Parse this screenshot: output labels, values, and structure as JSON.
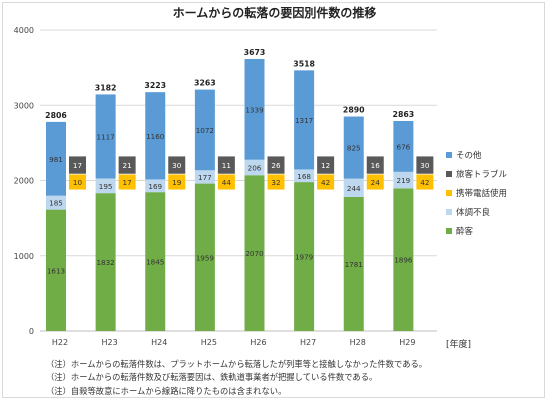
{
  "chart_data": {
    "type": "bar",
    "title": "ホームからの転落の要因別件数の推移",
    "categories": [
      "H22",
      "H23",
      "H24",
      "H25",
      "H26",
      "H27",
      "H28",
      "H29"
    ],
    "xlabel": "[年度]",
    "ylabel": "",
    "ylim": [
      0,
      4000
    ],
    "yticks": [
      "0",
      "1000",
      "2000",
      "3000",
      "4000"
    ],
    "grid": true,
    "legend_position": "right",
    "stacked_series": [
      {
        "name": "酔客",
        "color": "#70ad47",
        "values": [
          1613,
          1832,
          1845,
          1959,
          2070,
          1979,
          1781,
          1896
        ]
      },
      {
        "name": "体調不良",
        "color": "#bdd7ee",
        "values": [
          185,
          195,
          169,
          177,
          206,
          168,
          244,
          219
        ]
      },
      {
        "name": "その他",
        "color": "#5b9bd5",
        "values": [
          981,
          1117,
          1160,
          1072,
          1339,
          1317,
          825,
          676
        ]
      }
    ],
    "totals": [
      2806,
      3182,
      3223,
      3263,
      3673,
      3518,
      2890,
      2863
    ],
    "side_series": [
      {
        "name": "携帯電話使用",
        "color": "#ffc000",
        "values": [
          10,
          17,
          19,
          44,
          32,
          42,
          24,
          42
        ]
      },
      {
        "name": "旅客トラブル",
        "color": "#595959",
        "values": [
          17,
          21,
          30,
          11,
          26,
          12,
          16,
          30
        ]
      }
    ],
    "legend": [
      {
        "name": "その他",
        "color": "#5b9bd5"
      },
      {
        "name": "旅客トラブル",
        "color": "#595959"
      },
      {
        "name": "携帯電話使用",
        "color": "#ffc000"
      },
      {
        "name": "体調不良",
        "color": "#bdd7ee"
      },
      {
        "name": "酔客",
        "color": "#70ad47"
      }
    ]
  },
  "notes": [
    "（注）ホームからの転落件数は、プラットホームから転落したが列車等と接触しなかった件数である。",
    "（注）ホームからの転落件数及び転落要因は、鉄軌道事業者が把握している件数である。",
    "（注）自殺等故意にホームから線路に降りたものは含まれない。"
  ]
}
